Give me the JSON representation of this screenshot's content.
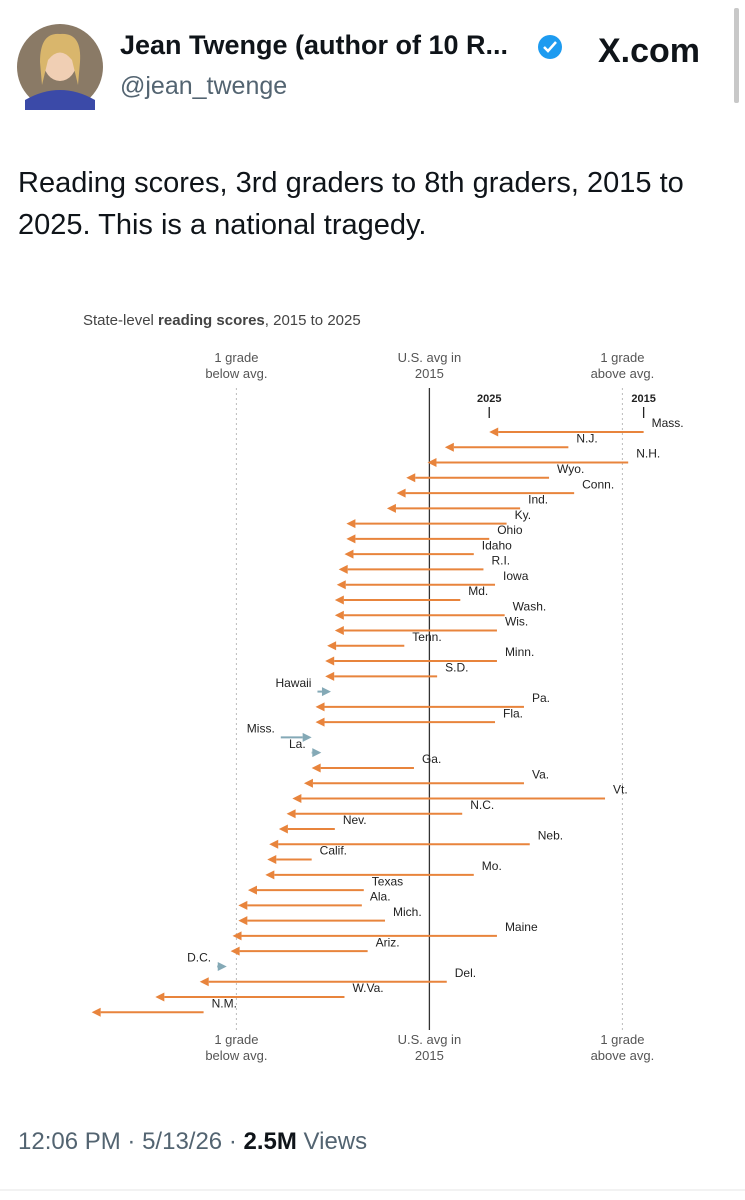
{
  "tweet": {
    "author_name": "Jean Twenge (author of 10 R...",
    "handle": "@jean_twenge",
    "site": "X.com",
    "text": "Reading scores, 3rd graders to 8th graders, 2015 to 2025. This is a national tragedy.",
    "time": "12:06 PM",
    "separator": "·",
    "date": "5/13/26",
    "views": "2.5M",
    "views_label": "Views"
  },
  "chart_data": {
    "type": "arrow",
    "title_prefix": "State-level ",
    "title_bold": "reading scores",
    "title_suffix": ", 2015 to 2025",
    "categories": [
      "Mass.",
      "N.J.",
      "N.H.",
      "Wyo.",
      "Conn.",
      "Ind.",
      "Ky.",
      "Ohio",
      "Idaho",
      "R.I.",
      "Iowa",
      "Md.",
      "Wash.",
      "Wis.",
      "Tenn.",
      "Minn.",
      "S.D.",
      "Hawaii",
      "Pa.",
      "Fla.",
      "Miss.",
      "La.",
      "Ga.",
      "Va.",
      "Vt.",
      "N.C.",
      "Nev.",
      "Neb.",
      "Calif.",
      "Mo.",
      "Texas",
      "Ala.",
      "Mich.",
      "Maine",
      "Ariz.",
      "D.C.",
      "Del.",
      "W.Va.",
      "N.M."
    ],
    "series": [
      {
        "name": "2015",
        "values": [
          1.11,
          0.72,
          1.03,
          0.62,
          0.75,
          0.47,
          0.4,
          0.31,
          0.23,
          0.28,
          0.34,
          0.16,
          0.39,
          0.35,
          -0.13,
          0.35,
          0.04,
          -0.58,
          0.49,
          0.34,
          -0.77,
          -0.61,
          -0.08,
          0.49,
          0.91,
          0.17,
          -0.49,
          0.52,
          -0.61,
          0.23,
          -0.34,
          -0.35,
          -0.23,
          0.35,
          -0.32,
          -1.1,
          0.09,
          -0.44,
          -1.17
        ]
      },
      {
        "name": "2025",
        "values": [
          0.31,
          0.08,
          -0.01,
          -0.12,
          -0.17,
          -0.22,
          -0.43,
          -0.43,
          -0.44,
          -0.47,
          -0.48,
          -0.49,
          -0.49,
          -0.49,
          -0.53,
          -0.54,
          -0.54,
          -0.51,
          -0.59,
          -0.59,
          -0.61,
          -0.56,
          -0.61,
          -0.65,
          -0.71,
          -0.74,
          -0.78,
          -0.83,
          -0.84,
          -0.85,
          -0.94,
          -0.99,
          -0.99,
          -1.02,
          -1.03,
          -1.05,
          -1.19,
          -1.42,
          -1.75
        ]
      }
    ],
    "decline_color": "#e8843c",
    "rise_color": "#84a9b6",
    "xlim": [
      -1.8,
      1.2
    ],
    "xticks": [
      {
        "value": -1,
        "label": "1 grade below avg."
      },
      {
        "value": 0,
        "label": "U.S. avg in 2015"
      },
      {
        "value": 1,
        "label": "1 grade above avg."
      }
    ],
    "grid": true
  }
}
